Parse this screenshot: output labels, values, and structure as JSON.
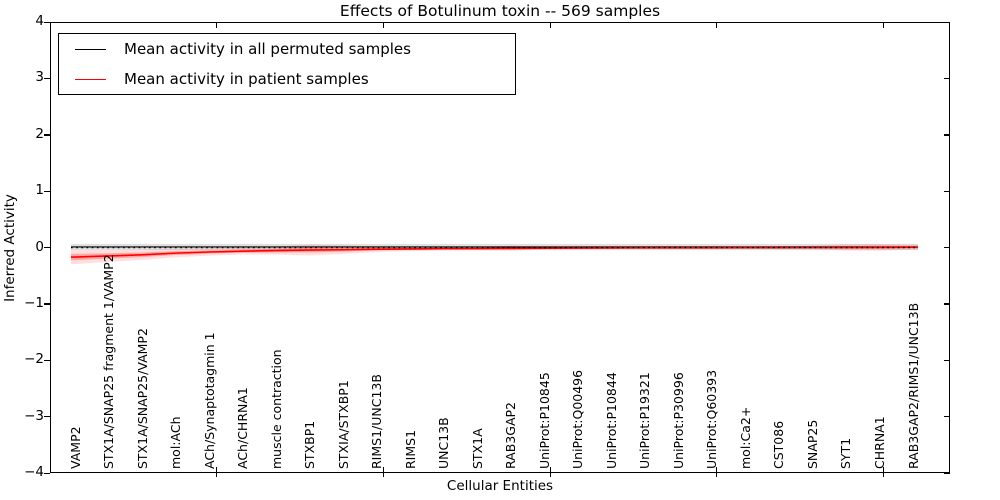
{
  "title": "Effects of Botulinum toxin -- 569 samples",
  "legend": {
    "items": [
      {
        "label": "Mean activity in all permuted samples",
        "color": "#000000"
      },
      {
        "label": "Mean activity in patient samples",
        "color": "#ff0000"
      }
    ]
  },
  "axes": {
    "xlabel": "Cellular Entities",
    "ylabel": "Inferred Activity"
  },
  "chart_data": {
    "type": "line",
    "title": "Effects of Botulinum toxin -- 569 samples",
    "xlabel": "Cellular Entities",
    "ylabel": "Inferred Activity",
    "ylim": [
      -4,
      4
    ],
    "xlim": [
      0,
      27
    ],
    "yticklabels": [
      "4",
      "3",
      "2",
      "1",
      "0",
      "−1",
      "−2",
      "−3",
      "−4"
    ],
    "xticks_unlabeled": [
      5,
      10,
      15,
      20,
      25
    ],
    "grid": false,
    "legend_position": "upper left",
    "categories": [
      "VAMP2",
      "STX1A/SNAP25 fragment 1/VAMP2",
      "STX1A/SNAP25/VAMP2",
      "mol:ACh",
      "ACh/Synaptotagmin 1",
      "ACh/CHRNA1",
      "muscle contraction",
      "STXBP1",
      "STXIA/STXBP1",
      "RIMS1/UNC13B",
      "RIMS1",
      "UNC13B",
      "STX1A",
      "RAB3GAP2",
      "UniProt:P10845",
      "UniProt:Q00496",
      "UniProt:P10844",
      "UniProt:P19321",
      "UniProt:P30996",
      "UniProt:Q60393",
      "mol:Ca2+",
      "CST086",
      "SNAP25",
      "SYT1",
      "CHRNA1",
      "RAB3GAP2/RIMS1/UNC13B"
    ],
    "reference_line": {
      "y": 0,
      "style": "dotted",
      "color": "#000000"
    },
    "series": [
      {
        "name": "Mean activity in all permuted samples",
        "color": "#000000",
        "values": [
          0.01,
          0.01,
          0.01,
          0.01,
          0.01,
          0.01,
          0.01,
          0.01,
          0.01,
          0.01,
          0.01,
          0.01,
          0.01,
          0.01,
          0.01,
          0.01,
          0.01,
          0.01,
          0.01,
          0.01,
          0.01,
          0.01,
          0.01,
          0.01,
          0.01,
          0.01
        ],
        "band_half": [
          0.055,
          0.055,
          0.055,
          0.055,
          0.055,
          0.055,
          0.055,
          0.055,
          0.055,
          0.055,
          0.055,
          0.055,
          0.055,
          0.055,
          0.055,
          0.055,
          0.055,
          0.055,
          0.055,
          0.055,
          0.055,
          0.055,
          0.055,
          0.055,
          0.055,
          0.055
        ],
        "band_opacity": 0.12
      },
      {
        "name": "Mean activity in patient samples",
        "color": "#ff0000",
        "values": [
          -0.17,
          -0.15,
          -0.13,
          -0.1,
          -0.08,
          -0.065,
          -0.055,
          -0.045,
          -0.04,
          -0.03,
          -0.025,
          -0.02,
          -0.02,
          -0.015,
          -0.012,
          -0.01,
          -0.008,
          -0.006,
          -0.005,
          -0.005,
          -0.004,
          -0.003,
          -0.002,
          0.0,
          0.003,
          0.005
        ],
        "band_half": [
          0.125,
          0.105,
          0.09,
          0.075,
          0.065,
          0.06,
          0.07,
          0.095,
          0.075,
          0.05,
          0.04,
          0.035,
          0.033,
          0.045,
          0.028,
          0.022,
          0.02,
          0.02,
          0.02,
          0.02,
          0.02,
          0.025,
          0.032,
          0.055,
          0.06,
          0.045
        ],
        "band_half_inner": [
          0.056,
          0.047,
          0.041,
          0.034,
          0.029,
          0.027,
          0.032,
          0.043,
          0.034,
          0.023,
          0.018,
          0.016,
          0.015,
          0.02,
          0.013,
          0.01,
          0.009,
          0.009,
          0.009,
          0.009,
          0.009,
          0.011,
          0.014,
          0.025,
          0.027,
          0.02
        ],
        "band_opacity": 0.13,
        "band_opacity_inner": 0.25
      }
    ]
  }
}
